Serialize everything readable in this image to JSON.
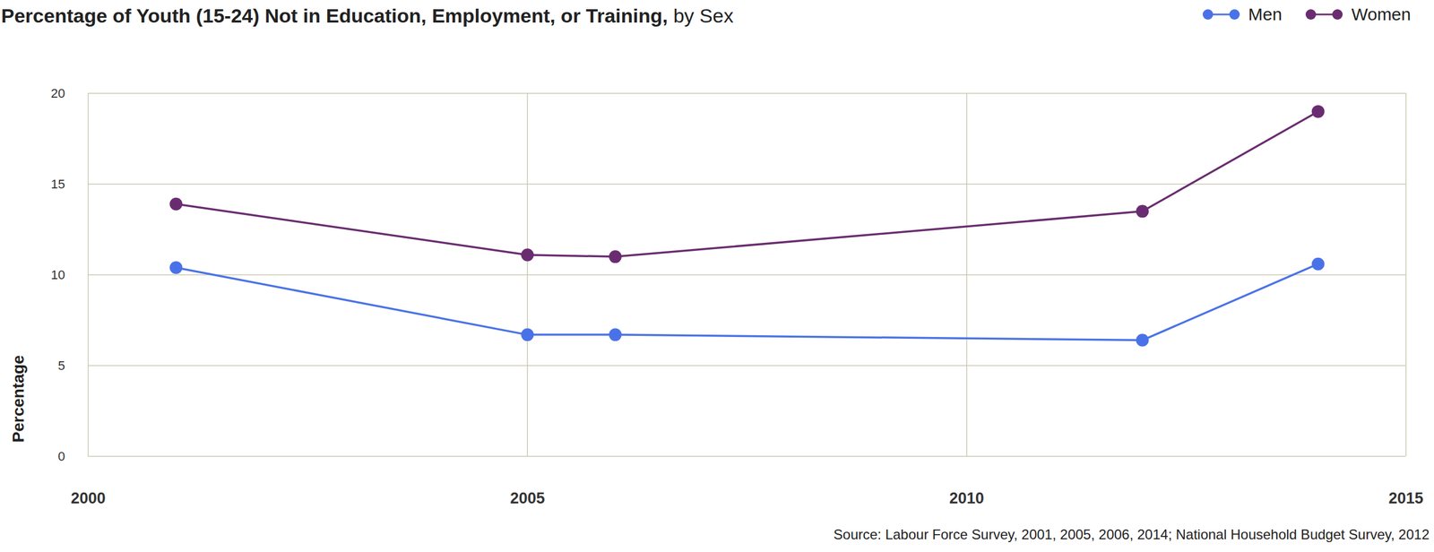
{
  "chart_data": {
    "type": "line",
    "title": "Percentage of Youth (15-24) Not in Education, Employment, or Training,",
    "subtitle": "by Sex",
    "ylabel": "Percentage",
    "source": "Source: Labour Force Survey, 2001, 2005, 2006, 2014; National Household Budget Survey, 2012",
    "x": [
      2001,
      2005,
      2006,
      2012,
      2014
    ],
    "series": [
      {
        "name": "Men",
        "color": "#4a72e8",
        "marker": "circle",
        "values": [
          10.4,
          6.7,
          6.7,
          6.4,
          10.6
        ]
      },
      {
        "name": "Women",
        "color": "#6a2c70",
        "marker": "circle",
        "values": [
          13.9,
          11.1,
          11.0,
          13.5,
          19.0
        ]
      }
    ],
    "xlim": [
      2000,
      2015
    ],
    "xticks": [
      2000,
      2005,
      2010,
      2015
    ],
    "ylim": [
      0,
      20
    ],
    "yticks": [
      0,
      5,
      10,
      15,
      20
    ],
    "grid": true,
    "legend": "top-right"
  }
}
